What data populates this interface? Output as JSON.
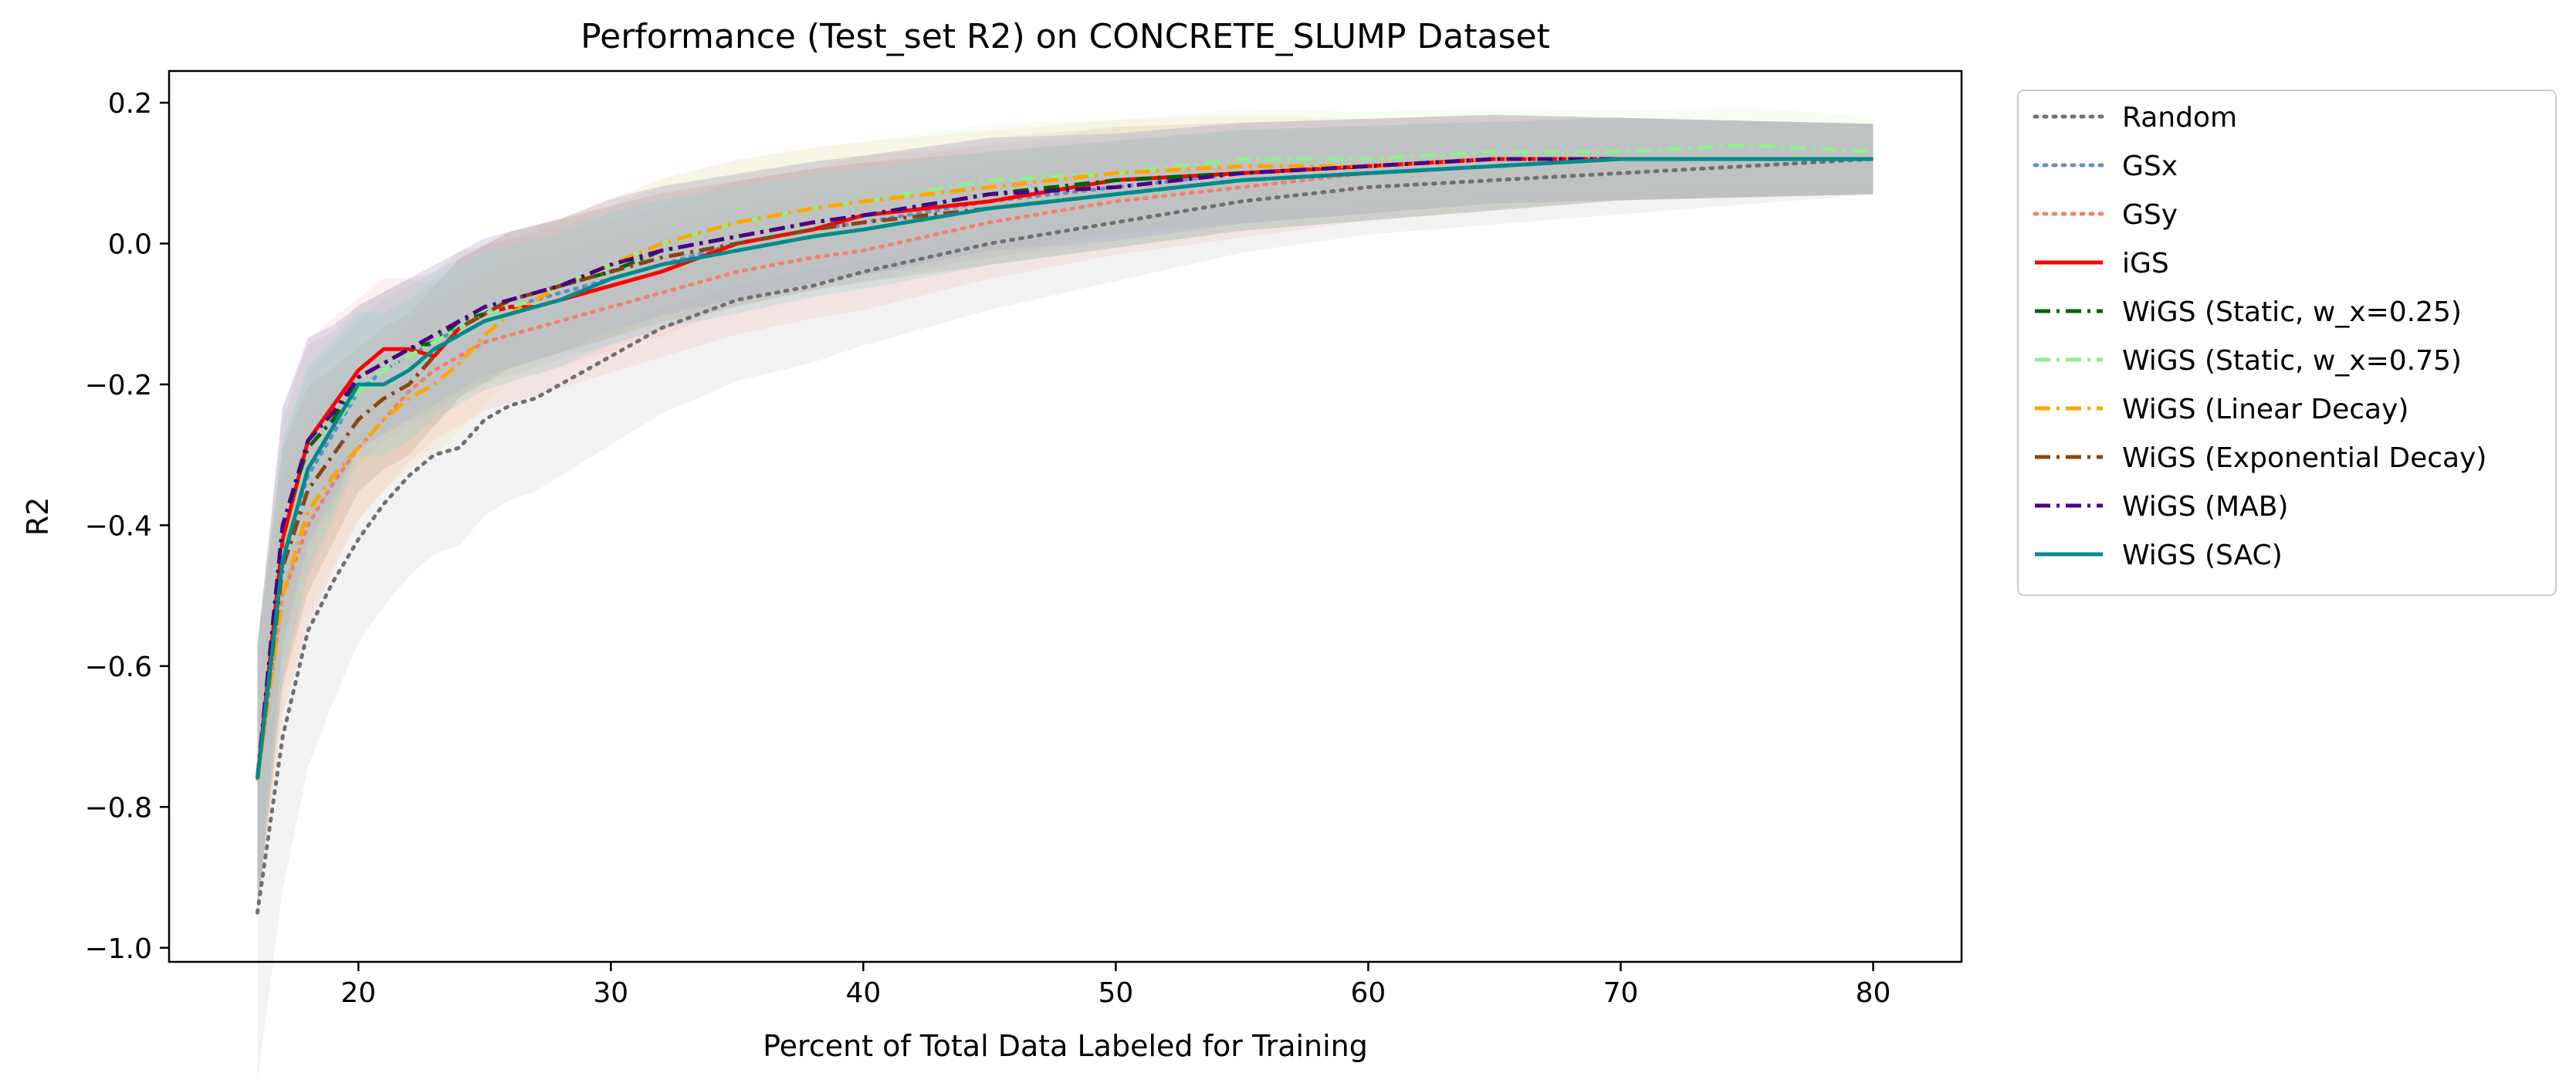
{
  "chart_data": {
    "type": "line",
    "title": "Performance (Test_set R2) on CONCRETE_SLUMP Dataset",
    "xlabel": "Percent of Total Data Labeled for Training",
    "ylabel": "R2",
    "xlim": [
      12.5,
      83.5
    ],
    "ylim": [
      -1.02,
      0.245
    ],
    "xticks": [
      20,
      30,
      40,
      50,
      60,
      70,
      80
    ],
    "xtick_labels": [
      "20",
      "30",
      "40",
      "50",
      "60",
      "70",
      "80"
    ],
    "yticks": [
      -1.0,
      -0.8,
      -0.6,
      -0.4,
      -0.2,
      0.0,
      0.2
    ],
    "ytick_labels": [
      "−1.0",
      "−0.8",
      "−0.6",
      "−0.4",
      "−0.2",
      "0.0",
      "0.2"
    ],
    "grid": false,
    "legend_position": "outside-right-top",
    "bands_shown": true,
    "x": [
      16,
      17,
      18,
      19,
      20,
      21,
      22,
      23,
      24,
      25,
      26,
      27,
      28,
      30,
      32,
      35,
      38,
      40,
      45,
      50,
      55,
      60,
      65,
      70,
      75,
      80
    ],
    "series": [
      {
        "name": "Random",
        "color": "#707070",
        "dash": "dotted",
        "band": "#bdbdbd",
        "values": [
          -0.95,
          -0.7,
          -0.55,
          -0.48,
          -0.42,
          -0.37,
          -0.33,
          -0.3,
          -0.29,
          -0.25,
          -0.23,
          -0.22,
          -0.2,
          -0.16,
          -0.12,
          -0.08,
          -0.06,
          -0.04,
          0.0,
          0.03,
          0.06,
          0.08,
          0.09,
          0.1,
          0.11,
          0.12
        ]
      },
      {
        "name": "GSx",
        "color": "#6a8ccc",
        "dash": "dotted",
        "band": "#a7c0ec",
        "values": [
          -0.76,
          -0.45,
          -0.33,
          -0.27,
          -0.21,
          -0.18,
          -0.16,
          -0.14,
          -0.12,
          -0.1,
          -0.09,
          -0.08,
          -0.07,
          -0.05,
          -0.03,
          0.0,
          0.02,
          0.03,
          0.06,
          0.08,
          0.1,
          0.11,
          0.12,
          0.12,
          0.12,
          0.12
        ]
      },
      {
        "name": "GSy",
        "color": "#f08070",
        "dash": "dotted",
        "band": "#f4b0a8",
        "values": [
          -0.76,
          -0.5,
          -0.4,
          -0.34,
          -0.29,
          -0.25,
          -0.21,
          -0.18,
          -0.16,
          -0.14,
          -0.13,
          -0.12,
          -0.11,
          -0.09,
          -0.07,
          -0.04,
          -0.02,
          -0.01,
          0.03,
          0.06,
          0.08,
          0.1,
          0.11,
          0.12,
          0.12,
          0.12
        ]
      },
      {
        "name": "iGS",
        "color": "#ff0000",
        "dash": "solid",
        "band": "#f7b3b3",
        "values": [
          -0.76,
          -0.42,
          -0.28,
          -0.23,
          -0.18,
          -0.15,
          -0.15,
          -0.16,
          -0.12,
          -0.1,
          -0.09,
          -0.09,
          -0.08,
          -0.06,
          -0.04,
          0.0,
          0.02,
          0.04,
          0.06,
          0.09,
          0.1,
          0.11,
          0.12,
          0.12,
          0.12,
          0.12
        ]
      },
      {
        "name": "WiGS (Static, w_x=0.25)",
        "color": "#006400",
        "dash": "dashdot",
        "band": "#a3c7a3",
        "values": [
          -0.76,
          -0.4,
          -0.29,
          -0.25,
          -0.19,
          -0.17,
          -0.15,
          -0.14,
          -0.11,
          -0.1,
          -0.08,
          -0.07,
          -0.06,
          -0.04,
          -0.01,
          0.01,
          0.03,
          0.04,
          0.07,
          0.09,
          0.1,
          0.11,
          0.12,
          0.12,
          0.12,
          0.12
        ]
      },
      {
        "name": "WiGS (Static, w_x=0.75)",
        "color": "#90ee90",
        "dash": "dashdot",
        "band": "#d6f6c8",
        "values": [
          -0.76,
          -0.44,
          -0.32,
          -0.26,
          -0.21,
          -0.18,
          -0.16,
          -0.14,
          -0.12,
          -0.1,
          -0.09,
          -0.08,
          -0.06,
          -0.03,
          0.0,
          0.03,
          0.05,
          0.06,
          0.09,
          0.1,
          0.12,
          0.12,
          0.13,
          0.13,
          0.14,
          0.13
        ]
      },
      {
        "name": "WiGS (Linear Decay)",
        "color": "#ffa500",
        "dash": "dashdot",
        "band": "#f8d9a0",
        "values": [
          -0.76,
          -0.5,
          -0.38,
          -0.33,
          -0.29,
          -0.25,
          -0.22,
          -0.2,
          -0.17,
          -0.13,
          -0.1,
          -0.08,
          -0.06,
          -0.03,
          0.0,
          0.03,
          0.05,
          0.06,
          0.08,
          0.1,
          0.11,
          0.11,
          0.12,
          0.12,
          0.12,
          0.12
        ]
      },
      {
        "name": "WiGS (Exponential Decay)",
        "color": "#8b4513",
        "dash": "dashdot",
        "band": "#c9a98f",
        "values": [
          -0.76,
          -0.46,
          -0.35,
          -0.3,
          -0.25,
          -0.22,
          -0.2,
          -0.16,
          -0.12,
          -0.1,
          -0.08,
          -0.07,
          -0.06,
          -0.04,
          -0.02,
          0.0,
          0.02,
          0.03,
          0.05,
          0.07,
          0.09,
          0.1,
          0.11,
          0.12,
          0.12,
          0.12
        ]
      },
      {
        "name": "WiGS (MAB)",
        "color": "#4b0082",
        "dash": "dashdot",
        "band": "#b9a3cf",
        "values": [
          -0.76,
          -0.4,
          -0.28,
          -0.24,
          -0.19,
          -0.17,
          -0.15,
          -0.13,
          -0.11,
          -0.09,
          -0.08,
          -0.07,
          -0.06,
          -0.03,
          -0.01,
          0.01,
          0.03,
          0.04,
          0.07,
          0.08,
          0.1,
          0.11,
          0.12,
          0.12,
          0.12,
          0.12
        ]
      },
      {
        "name": "WiGS (SAC)",
        "color": "#008b8b",
        "dash": "solid",
        "band": "#a0cfcf",
        "values": [
          -0.76,
          -0.45,
          -0.32,
          -0.26,
          -0.2,
          -0.2,
          -0.18,
          -0.15,
          -0.13,
          -0.11,
          -0.1,
          -0.09,
          -0.08,
          -0.05,
          -0.03,
          -0.01,
          0.01,
          0.02,
          0.05,
          0.07,
          0.09,
          0.1,
          0.11,
          0.12,
          0.12,
          0.12
        ]
      }
    ]
  }
}
